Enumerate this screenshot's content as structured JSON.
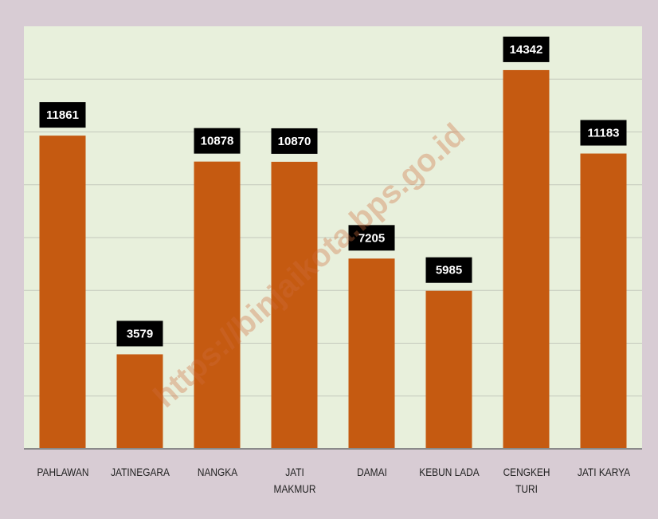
{
  "chart_data": {
    "type": "bar",
    "categories": [
      "PAHLAWAN",
      "JATINEGARA",
      "NANGKA",
      "JATI MAKMUR",
      "DAMAI",
      "KEBUN LADA",
      "CENGKEH TURI",
      "JATI KARYA"
    ],
    "values": [
      11861,
      3579,
      10878,
      10870,
      7205,
      5985,
      14342,
      11183
    ],
    "color": "#c55a11",
    "ylim": [
      0,
      16000
    ],
    "yticks": [
      0,
      2000,
      4000,
      6000,
      8000,
      10000,
      12000,
      14000
    ],
    "grid": true,
    "watermark": "https://binjaikota.bps.go.id"
  }
}
